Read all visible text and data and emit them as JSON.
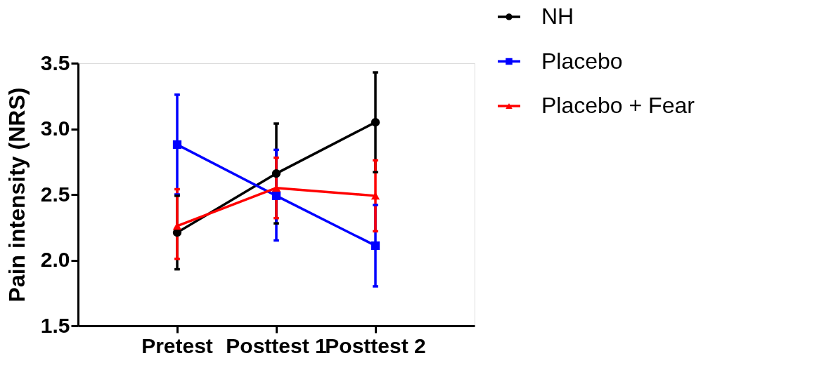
{
  "chart_data": {
    "type": "line",
    "ylabel": "Pain intensity (NRS)",
    "categories": [
      "Pretest",
      "Posttest 1",
      "Posttest 2"
    ],
    "ylim": [
      1.5,
      3.5
    ],
    "yticks": [
      {
        "value": 1.5,
        "label": "1.5"
      },
      {
        "value": 2,
        "label": "2.0"
      },
      {
        "value": 2.5,
        "label": "2.5"
      },
      {
        "value": 3,
        "label": "3.0"
      },
      {
        "value": 3.5,
        "label": "3.5"
      }
    ],
    "grid": false,
    "legend": "top right",
    "line_style": "solid",
    "series": [
      {
        "name": "NH",
        "color": "#000000",
        "marker": "circle",
        "values": [
          2.21,
          2.66,
          3.05
        ],
        "errors": [
          [
            1.93,
            2.49
          ],
          [
            2.28,
            3.04
          ],
          [
            2.67,
            3.43
          ]
        ]
      },
      {
        "name": "Placebo",
        "color": "#0000ff",
        "marker": "square",
        "values": [
          2.88,
          2.49,
          2.11
        ],
        "errors": [
          [
            2.5,
            3.26
          ],
          [
            2.15,
            2.84
          ],
          [
            1.8,
            2.42
          ]
        ]
      },
      {
        "name": "Placebo + Fear",
        "color": "#ff0000",
        "marker": "triangle",
        "values": [
          2.26,
          2.55,
          2.49
        ],
        "errors": [
          [
            2.01,
            2.54
          ],
          [
            2.32,
            2.78
          ],
          [
            2.22,
            2.76
          ]
        ]
      }
    ]
  }
}
